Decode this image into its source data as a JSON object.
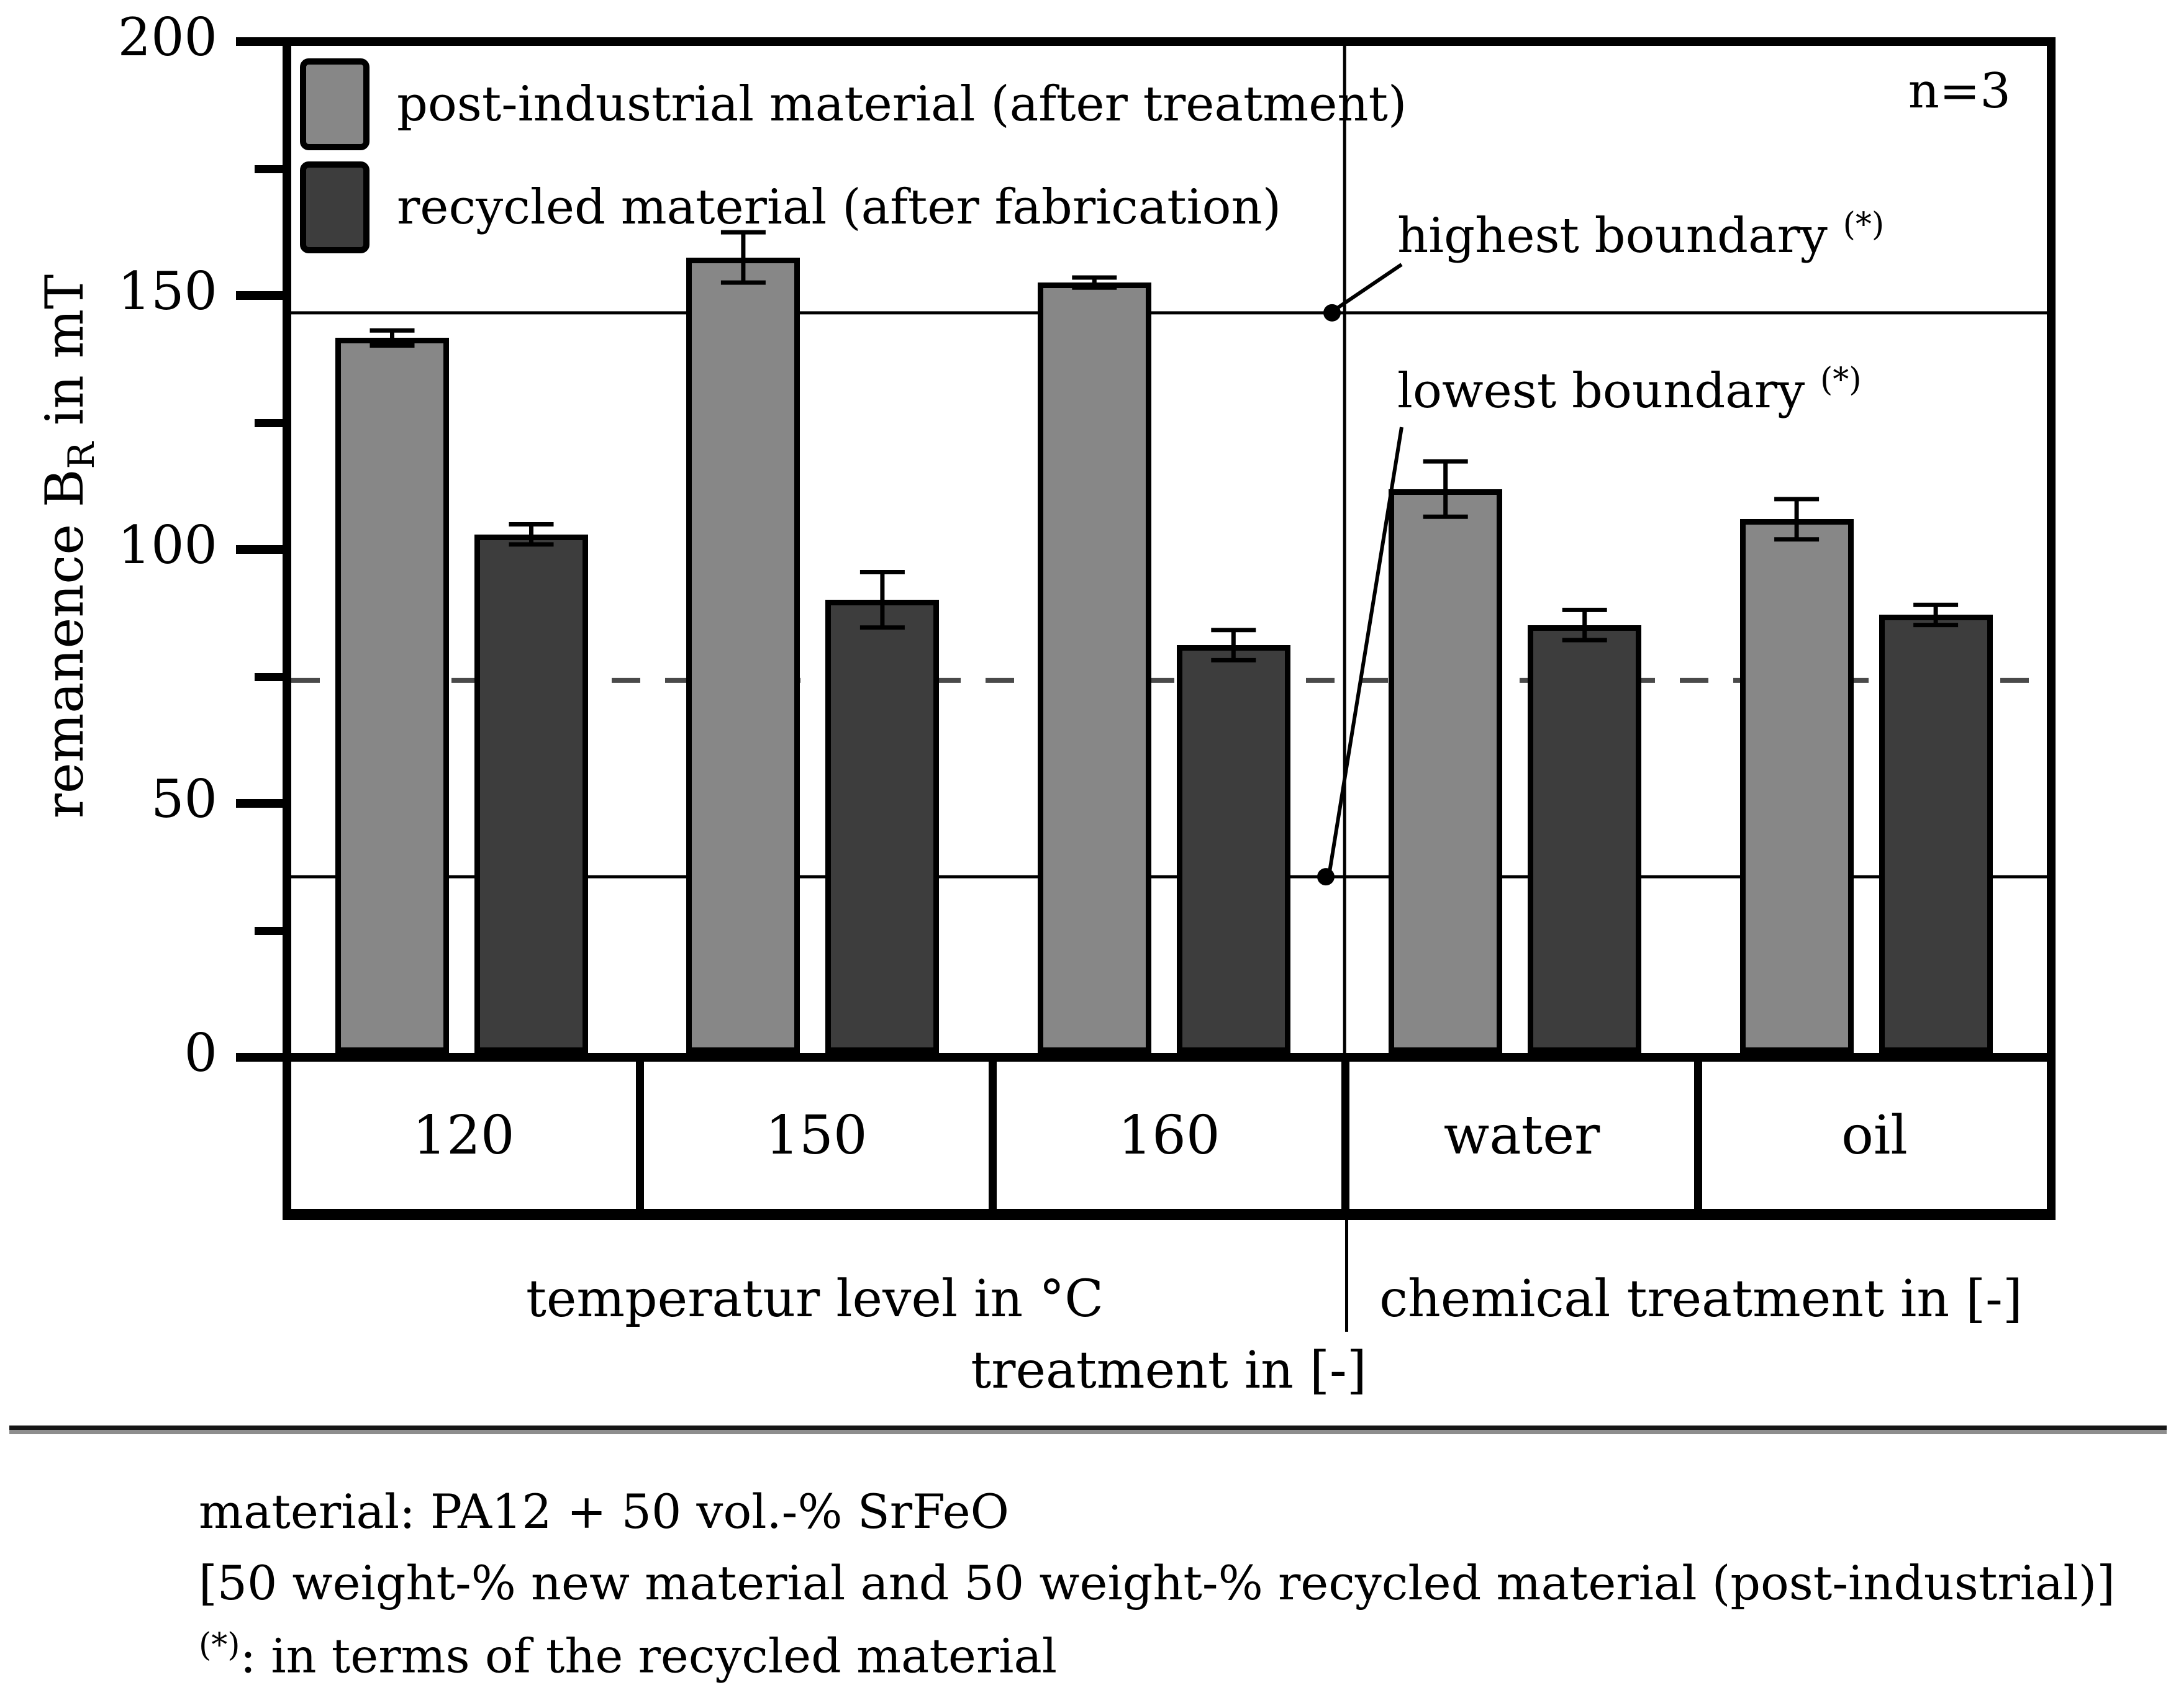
{
  "figure": {
    "n_label": "n=3",
    "y_axis": {
      "title_prefix": "remanence B",
      "title_sub": "R",
      "title_suffix": " in mT",
      "major_ticks": [
        0,
        50,
        100,
        150,
        200
      ],
      "minor_ticks": [
        25,
        75,
        125,
        175
      ]
    },
    "annotations": {
      "highest": {
        "text": "highest boundary ",
        "sup": "(*)"
      },
      "lowest": {
        "text": "lowest boundary ",
        "sup": "(*)"
      }
    },
    "x_axis": {
      "group_labels": [
        {
          "text": "temperatur level in °C"
        },
        {
          "text": "chemical treatment in [-]"
        }
      ],
      "axis_label": "treatment in [-]"
    },
    "footer": {
      "line1": "material: PA12 + 50 vol.-% SrFeO",
      "line2": "[50 weight-% new material and 50 weight-% recycled material (post-industrial)]",
      "note_sup": "(*)",
      "note_rest": ": in terms of the recycled material"
    }
  },
  "chart_data": {
    "type": "bar",
    "title": "",
    "xlabel": "treatment in [-]",
    "ylabel": "remanence B_R in mT",
    "ylim": [
      0,
      200
    ],
    "grid": false,
    "legend_position": "top-left-inside",
    "sample_size_note": "n=3",
    "categories": [
      "120",
      "150",
      "160",
      "water",
      "oil"
    ],
    "category_groups": [
      {
        "label": "temperatur level in °C",
        "categories": [
          "120",
          "150",
          "160"
        ]
      },
      {
        "label": "chemical treatment in [-]",
        "categories": [
          "water",
          "oil"
        ]
      }
    ],
    "series": [
      {
        "name": "post-industrial material (after treatment)",
        "color": "#878787",
        "values": [
          142,
          158,
          153,
          112,
          106
        ],
        "errors": [
          1.5,
          5,
          1,
          5.5,
          4
        ]
      },
      {
        "name": "recycled material (after fabrication)",
        "color": "#3d3d3d",
        "values": [
          103,
          90,
          81,
          85,
          87
        ],
        "errors": [
          2,
          5.5,
          3,
          3,
          2
        ]
      }
    ],
    "reference_lines": {
      "highest_boundary": 147,
      "lowest_boundary": 35,
      "dashed_line": 74
    }
  }
}
